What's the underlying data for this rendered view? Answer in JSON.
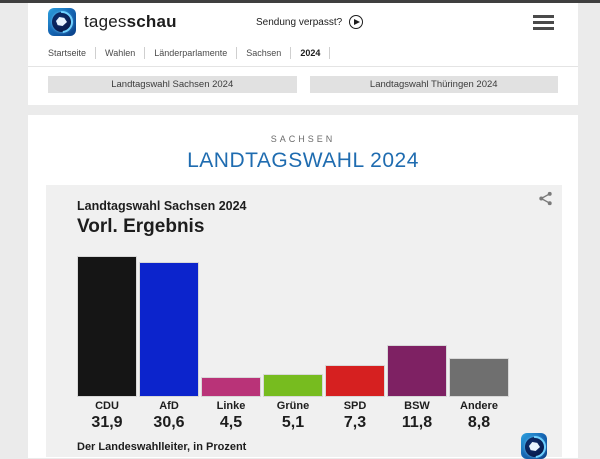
{
  "colors": {
    "accent_blue": "#1f6cb0",
    "page_bg": "#ebebeb",
    "card_bg": "#f0f0f0",
    "top_strip": "#3f3f3f"
  },
  "header": {
    "brand_regular": "tages",
    "brand_bold": "schau",
    "watch_link": "Sendung verpasst?"
  },
  "breadcrumb": [
    "Startseite",
    "Wahlen",
    "Länderparlamente",
    "Sachsen",
    "2024"
  ],
  "quick_links": [
    "Landtagswahl Sachsen 2024",
    "Landtagswahl Thüringen 2024"
  ],
  "page": {
    "kicker": "SACHSEN",
    "title": "LANDTAGSWAHL 2024"
  },
  "chart_data": {
    "type": "bar",
    "title": "Landtagswahl Sachsen 2024",
    "subtitle": "Vorl. Ergebnis",
    "source": "Der Landeswahlleiter, in Prozent",
    "categories": [
      "CDU",
      "AfD",
      "Linke",
      "Grüne",
      "SPD",
      "BSW",
      "Andere"
    ],
    "values": [
      31.9,
      30.6,
      4.5,
      5.1,
      7.3,
      11.8,
      8.8
    ],
    "value_labels": [
      "31,9",
      "30,6",
      "4,5",
      "5,1",
      "7,3",
      "11,8",
      "8,8"
    ],
    "bar_colors": [
      "#151515",
      "#0c24cc",
      "#b93378",
      "#77bc1f",
      "#d62020",
      "#7e2163",
      "#6f6f6f"
    ],
    "ylim": [
      0,
      31.9
    ],
    "grid": false,
    "legend": false
  }
}
